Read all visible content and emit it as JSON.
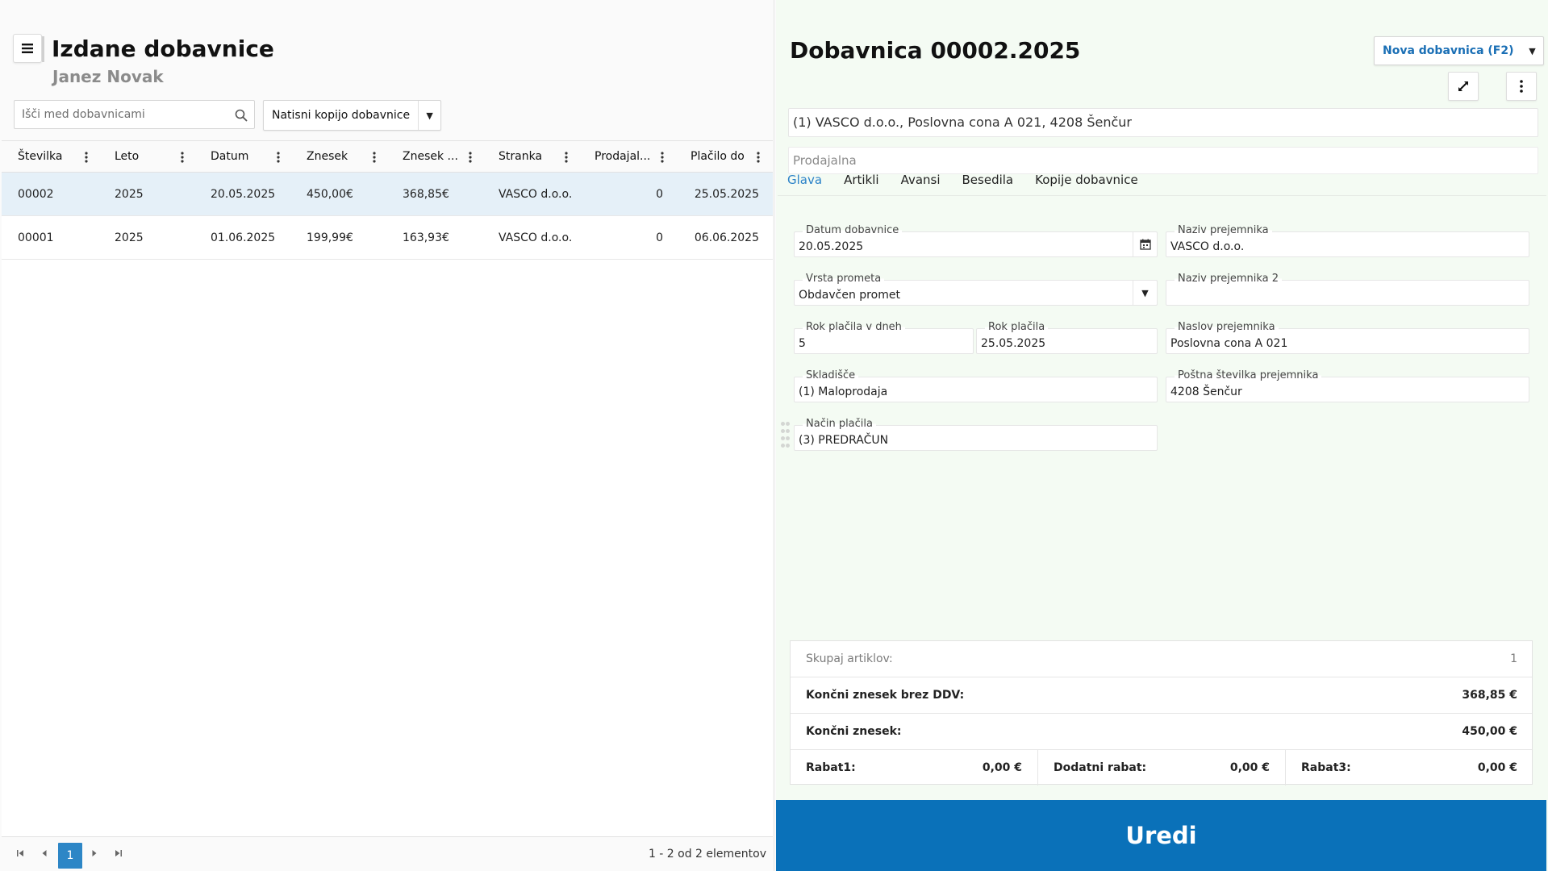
{
  "left": {
    "title": "Izdane dobavnice",
    "subtitle": "Janez Novak",
    "search": {
      "placeholder": "Išči med dobavnicami",
      "value": ""
    },
    "print_button": {
      "label": "Natisni kopijo dobavnice"
    },
    "grid": {
      "columns": [
        "Številka",
        "Leto",
        "Datum",
        "Znesek",
        "Znesek ...",
        "Stranka",
        "Prodajal...",
        "Plačilo do"
      ],
      "rows": [
        {
          "stevilka": "00002",
          "leto": "2025",
          "datum": "20.05.2025",
          "znesek": "450,00€",
          "znesek_neto": "368,85€",
          "stranka": "VASCO d.o.o.",
          "prodajalna": "0",
          "placilo_do": "25.05.2025",
          "selected": true
        },
        {
          "stevilka": "00001",
          "leto": "2025",
          "datum": "01.06.2025",
          "znesek": "199,99€",
          "znesek_neto": "163,93€",
          "stranka": "VASCO d.o.o.",
          "prodajalna": "0",
          "placilo_do": "06.06.2025",
          "selected": false
        }
      ]
    },
    "pager": {
      "current_page": "1",
      "info": "1 - 2 od 2 elementov"
    }
  },
  "right": {
    "title": "Dobavnica 00002.2025",
    "new_button": {
      "label": "Nova dobavnica (F2)"
    },
    "party": "(1) VASCO d.o.o., Poslovna cona A 021, 4208 Šenčur",
    "store": {
      "placeholder": "Prodajalna",
      "value": ""
    },
    "tabs": [
      "Glava",
      "Artikli",
      "Avansi",
      "Besedila",
      "Kopije dobavnice"
    ],
    "active_tab": "Glava",
    "fields": {
      "datum_dobavnice": {
        "label": "Datum dobavnice",
        "value": "20.05.2025"
      },
      "vrsta_prometa": {
        "label": "Vrsta prometa",
        "value": "Obdavčen promet"
      },
      "rok_placila_dni": {
        "label": "Rok plačila v dneh",
        "value": "5"
      },
      "rok_placila": {
        "label": "Rok plačila",
        "value": "25.05.2025"
      },
      "skladisce": {
        "label": "Skladišče",
        "value": "(1) Maloprodaja"
      },
      "nacin_placila": {
        "label": "Način plačila",
        "value": "(3) PREDRAČUN"
      },
      "naziv_prejemnika": {
        "label": "Naziv prejemnika",
        "value": "VASCO d.o.o."
      },
      "naziv_prejemnika_2": {
        "label": "Naziv prejemnika 2",
        "value": ""
      },
      "naslov_prejemnika": {
        "label": "Naslov prejemnika",
        "value": "Poslovna cona A 021"
      },
      "postna_stevilka": {
        "label": "Poštna številka prejemnika",
        "value": "4208 Šenčur"
      }
    },
    "totals": {
      "skupaj_label": "Skupaj artiklov:",
      "skupaj_value": "1",
      "brez_ddv_label": "Končni znesek brez DDV:",
      "brez_ddv_value": "368,85 €",
      "koncni_label": "Končni znesek:",
      "koncni_value": "450,00 €",
      "rabat1_label": "Rabat1:",
      "rabat1_value": "0,00 €",
      "dodatni_label": "Dodatni rabat:",
      "dodatni_value": "0,00 €",
      "rabat3_label": "Rabat3:",
      "rabat3_value": "0,00 €"
    },
    "edit_button": {
      "label": "Uredi"
    }
  },
  "colors": {
    "accent": "#0a71b9",
    "tab_active": "#2b82c8",
    "selected_row": "#e5f0f8",
    "right_panel_bg": "#f4fbf3",
    "pager_active": "#2d86c6"
  },
  "icons": [
    "hamburger-icon",
    "search-icon",
    "more-vertical-icon",
    "calendar-icon",
    "expand-icon",
    "first-page-icon",
    "prev-page-icon",
    "next-page-icon",
    "last-page-icon",
    "caret-down-icon",
    "drag-handle-icon"
  ]
}
